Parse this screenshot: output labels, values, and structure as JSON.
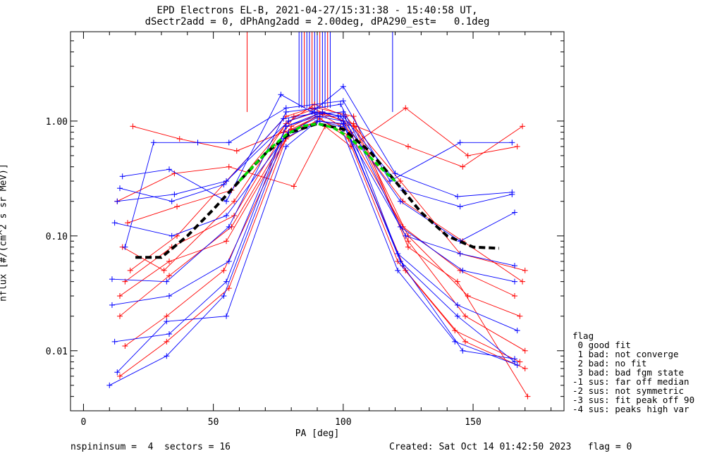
{
  "title_line1": "EPD Electrons EL-B, 2021-04-27/15:31:38 - 15:40:58 UT,",
  "title_line2": "dSectr2add = 0, dPhAng2add = 2.00deg, dPA290_est=   0.1deg",
  "footer": {
    "left": "nspininsum =  4  sectors = 16",
    "right": "Created: Sat Oct 14 01:42:50 2023   flag = 0"
  },
  "legend": {
    "title": "flag",
    "items": [
      " 0 good fit",
      " 1 bad: not converge",
      " 2 bad: no fit",
      " 3 bad: bad fgm state",
      "-1 sus: far off median",
      "-2 sus: not symmetric",
      "-3 sus: fit peak off 90",
      "-4 sus: peaks high var"
    ]
  },
  "colors": {
    "red": "#ff0000",
    "blue": "#0000ff",
    "median": "#000000",
    "fit": "#00dd00"
  },
  "chart_data": {
    "type": "line",
    "xlabel": "PA [deg]",
    "ylabel": "nflux [#/(cm^2 s sr MeV)]",
    "xlim": [
      -5,
      185
    ],
    "ylim": [
      0.003,
      6.0
    ],
    "yscale": "log",
    "xticks": [
      "0",
      "50",
      "100",
      "150"
    ],
    "yticks": [
      "0.01",
      "0.10",
      "1.00"
    ],
    "series": [
      {
        "color": "red",
        "x": [
          14,
          33,
          57,
          80,
          92,
          104,
          125,
          147,
          170
        ],
        "y": [
          0.02,
          0.045,
          0.12,
          0.9,
          1.2,
          0.9,
          0.09,
          0.02,
          0.01
        ]
      },
      {
        "color": "red",
        "x": [
          18,
          36,
          55,
          78,
          88,
          100,
          123,
          145,
          166
        ],
        "y": [
          0.05,
          0.1,
          0.3,
          1.1,
          1.3,
          1.0,
          0.12,
          0.05,
          0.03
        ]
      },
      {
        "color": "red",
        "x": [
          16,
          32,
          54,
          79,
          90,
          102,
          121,
          143,
          168
        ],
        "y": [
          0.011,
          0.02,
          0.05,
          0.8,
          1.1,
          0.7,
          0.06,
          0.015,
          0.008
        ]
      },
      {
        "color": "red",
        "x": [
          19,
          37,
          59,
          77,
          91,
          105,
          125,
          146,
          169
        ],
        "y": [
          0.9,
          0.7,
          0.55,
          0.8,
          1.0,
          0.9,
          0.6,
          0.4,
          0.9
        ]
      },
      {
        "color": "red",
        "x": [
          13,
          35,
          56,
          81,
          93,
          103,
          124,
          148,
          167
        ],
        "y": [
          0.2,
          0.35,
          0.4,
          0.27,
          0.9,
          0.6,
          1.3,
          0.5,
          0.6
        ]
      },
      {
        "color": "red",
        "x": [
          15,
          31,
          58,
          78,
          89,
          101,
          122,
          145,
          170
        ],
        "y": [
          0.08,
          0.05,
          0.2,
          0.95,
          1.4,
          1.1,
          0.3,
          0.07,
          0.05
        ]
      },
      {
        "color": "red",
        "x": [
          14,
          33,
          55,
          80,
          92,
          104,
          125,
          148,
          168
        ],
        "y": [
          0.03,
          0.06,
          0.09,
          0.85,
          1.15,
          0.95,
          0.1,
          0.03,
          0.02
        ]
      },
      {
        "color": "red",
        "x": [
          17,
          36,
          57,
          79,
          90,
          103,
          123,
          146,
          169
        ],
        "y": [
          0.13,
          0.18,
          0.25,
          1.0,
          1.2,
          0.8,
          0.2,
          0.09,
          0.04
        ]
      },
      {
        "color": "red",
        "x": [
          14,
          32,
          56,
          78,
          91,
          102,
          124,
          147,
          170
        ],
        "y": [
          0.006,
          0.012,
          0.035,
          0.7,
          1.05,
          0.75,
          0.05,
          0.012,
          0.007
        ]
      },
      {
        "color": "red",
        "x": [
          16,
          34,
          58,
          81,
          90,
          104,
          125,
          144,
          171
        ],
        "y": [
          0.04,
          0.08,
          0.15,
          1.1,
          1.3,
          1.1,
          0.08,
          0.04,
          0.004
        ]
      },
      {
        "color": "blue",
        "x": [
          12,
          33,
          55,
          78,
          90,
          100,
          122,
          144,
          166
        ],
        "y": [
          0.012,
          0.014,
          0.04,
          0.9,
          1.1,
          1.0,
          0.06,
          0.02,
          0.008
        ]
      },
      {
        "color": "blue",
        "x": [
          10,
          32,
          54,
          77,
          91,
          99,
          121,
          143,
          167
        ],
        "y": [
          0.005,
          0.009,
          0.03,
          0.7,
          1.0,
          0.9,
          0.05,
          0.012,
          0.0075
        ]
      },
      {
        "color": "blue",
        "x": [
          13,
          35,
          55,
          79,
          89,
          100,
          123,
          145,
          165
        ],
        "y": [
          0.2,
          0.23,
          0.3,
          1.0,
          1.2,
          1.1,
          0.25,
          0.18,
          0.23
        ]
      },
      {
        "color": "blue",
        "x": [
          11,
          32,
          56,
          78,
          90,
          99,
          122,
          146,
          166
        ],
        "y": [
          0.042,
          0.04,
          0.12,
          1.2,
          1.3,
          1.4,
          0.12,
          0.05,
          0.04
        ]
      },
      {
        "color": "blue",
        "x": [
          15,
          33,
          55,
          76,
          88,
          100,
          120,
          144,
          165
        ],
        "y": [
          0.33,
          0.38,
          0.2,
          1.7,
          1.2,
          2.0,
          0.35,
          0.22,
          0.24
        ]
      },
      {
        "color": "blue",
        "x": [
          12,
          34,
          55,
          79,
          91,
          98,
          124,
          145,
          166
        ],
        "y": [
          0.13,
          0.1,
          0.15,
          0.8,
          1.1,
          1.1,
          0.1,
          0.07,
          0.055
        ]
      },
      {
        "color": "blue",
        "x": [
          11,
          33,
          56,
          78,
          90,
          100,
          121,
          144,
          167
        ],
        "y": [
          0.025,
          0.03,
          0.06,
          0.9,
          1.15,
          1.2,
          0.07,
          0.025,
          0.015
        ]
      },
      {
        "color": "blue",
        "x": [
          14,
          34,
          54,
          77,
          92,
          99,
          122,
          145,
          166
        ],
        "y": [
          0.26,
          0.2,
          0.28,
          1.05,
          1.2,
          1.1,
          0.2,
          0.09,
          0.16
        ]
      },
      {
        "color": "blue",
        "x": [
          13,
          32,
          55,
          78,
          90,
          100,
          123,
          146,
          166
        ],
        "y": [
          0.0065,
          0.018,
          0.02,
          0.6,
          1.0,
          0.95,
          0.055,
          0.01,
          0.0085
        ]
      },
      {
        "color": "blue",
        "x": [
          16,
          27,
          44,
          56,
          78,
          100,
          118,
          145,
          165
        ],
        "y": [
          0.08,
          0.65,
          0.65,
          0.65,
          1.3,
          1.5,
          0.3,
          0.65,
          0.65
        ]
      }
    ],
    "median_curve": {
      "x": [
        20,
        30,
        40,
        50,
        60,
        70,
        80,
        90,
        100,
        110,
        120,
        130,
        140,
        150,
        160
      ],
      "y": [
        0.065,
        0.065,
        0.1,
        0.17,
        0.3,
        0.52,
        0.8,
        0.95,
        0.85,
        0.55,
        0.3,
        0.16,
        0.1,
        0.08,
        0.078
      ]
    },
    "fit_curve": {
      "x": [
        60,
        66,
        72,
        78,
        84,
        90,
        96,
        102,
        108,
        114,
        120
      ],
      "y": [
        0.3,
        0.42,
        0.58,
        0.76,
        0.9,
        0.95,
        0.88,
        0.73,
        0.55,
        0.4,
        0.3
      ]
    },
    "spike_x": [
      63,
      83,
      84,
      85,
      86,
      87,
      88,
      89,
      90,
      91,
      92,
      93,
      94,
      95,
      119
    ]
  }
}
